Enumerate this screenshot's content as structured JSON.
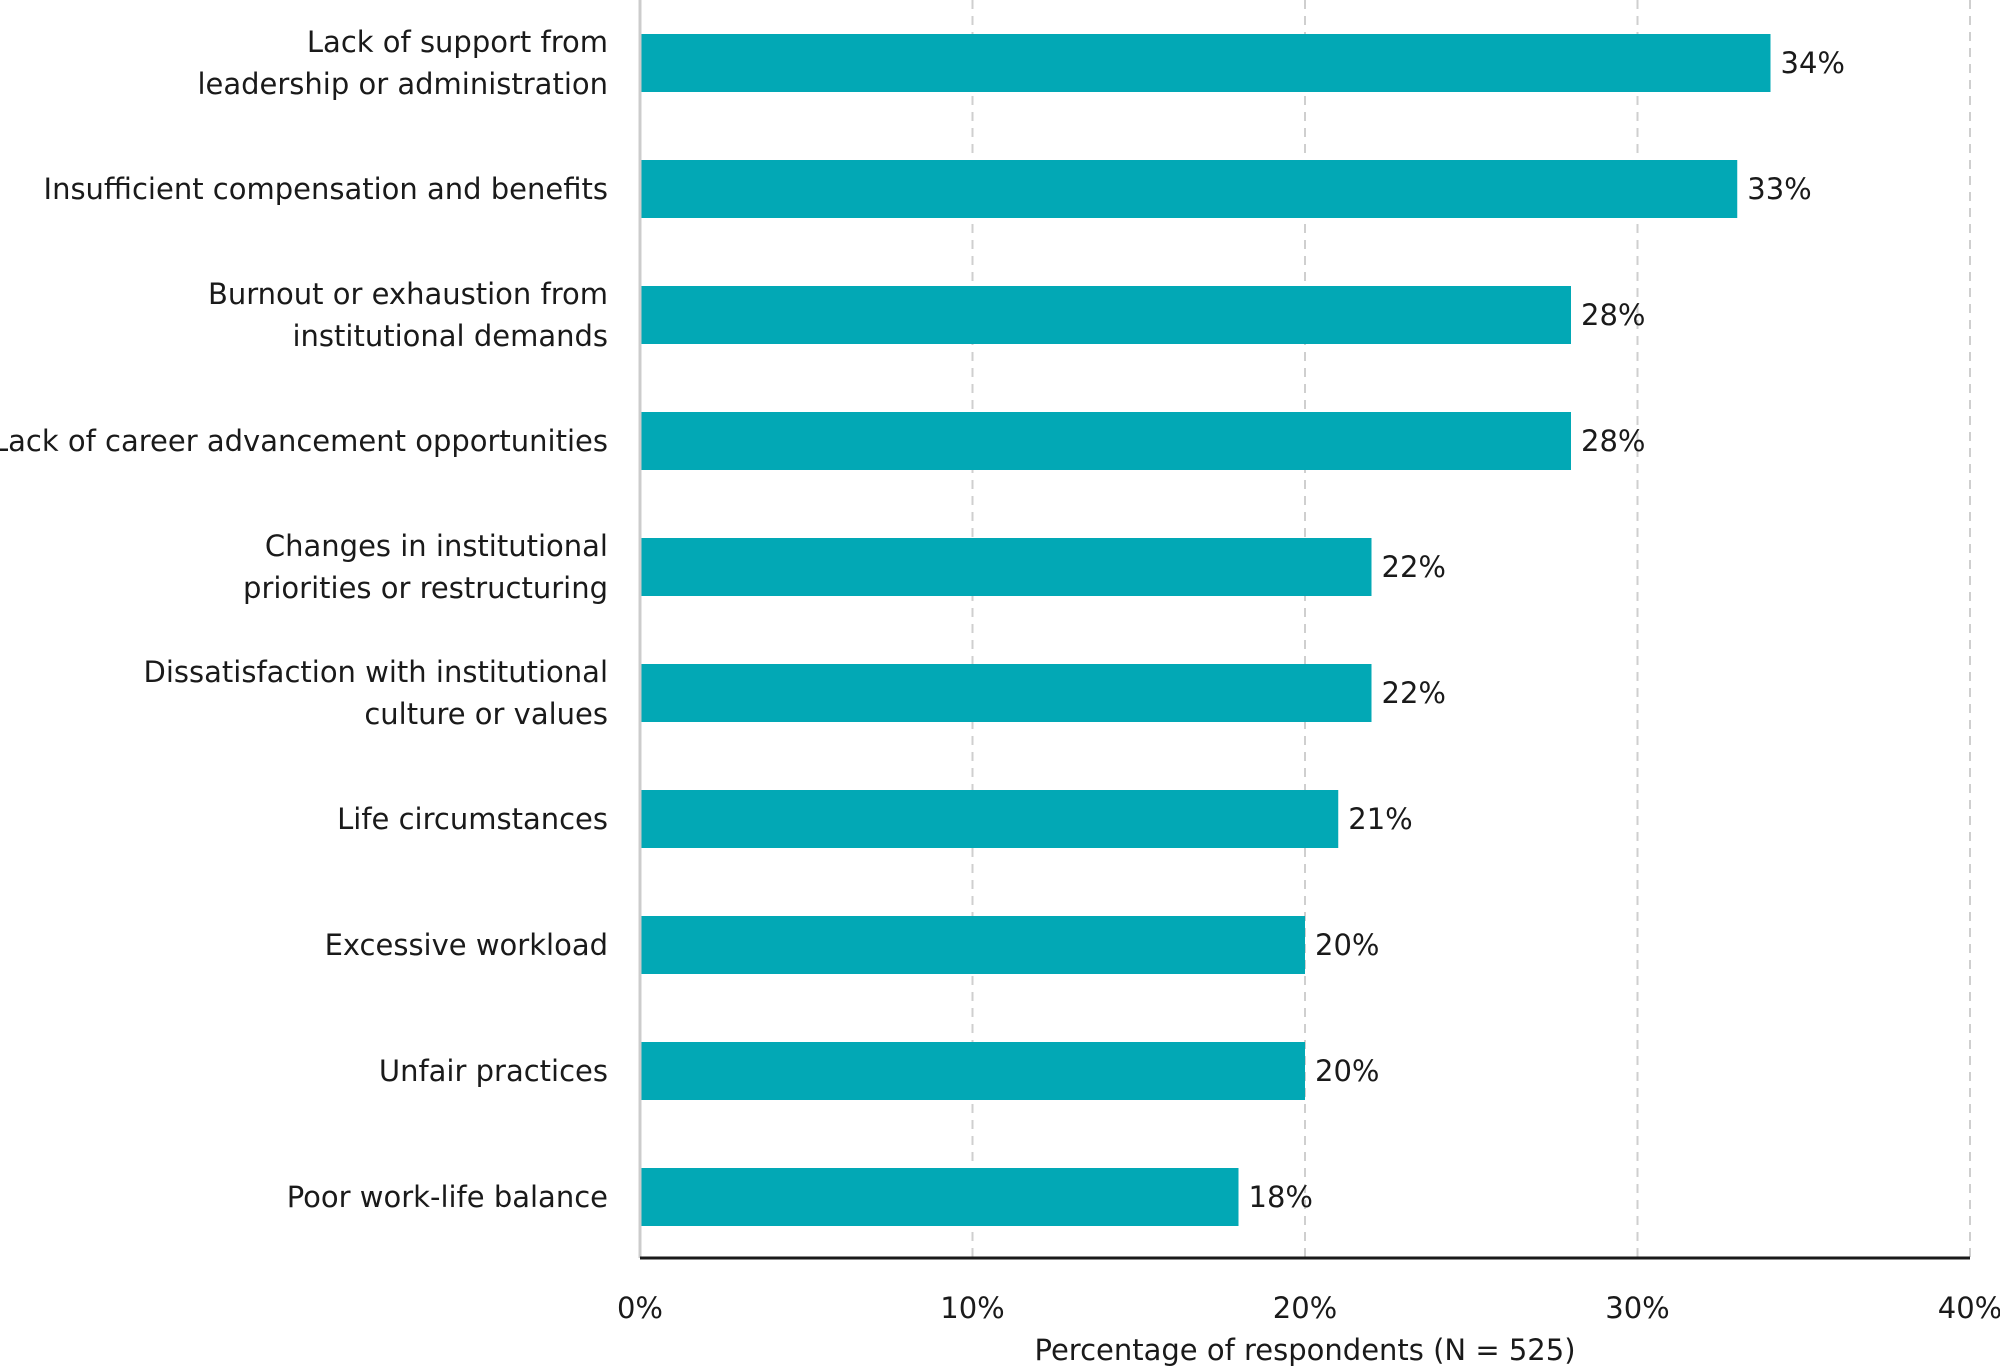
{
  "colors": {
    "bar": "#02a8b5",
    "grid": "#cfcfcf",
    "axis": "#1a1a1a",
    "text": "#1a1a1a"
  },
  "chart_data": {
    "type": "bar",
    "orientation": "horizontal",
    "categories": [
      "Lack of support from leadership or administration",
      "Insufficient compensation and benefits",
      "Burnout or exhaustion from institutional demands",
      "Lack of career advancement opportunities",
      "Changes in institutional priorities or restructuring",
      "Dissatisfaction with institutional culture or values",
      "Life circumstances",
      "Excessive workload",
      "Unfair practices",
      "Poor work-life balance"
    ],
    "category_label_lines": [
      [
        "Lack of support from",
        "leadership or administration"
      ],
      [
        "Insufficient compensation and benefits"
      ],
      [
        "Burnout or exhaustion from",
        "institutional demands"
      ],
      [
        "Lack of career advancement opportunities"
      ],
      [
        "Changes in institutional",
        "priorities or restructuring"
      ],
      [
        "Dissatisfaction with institutional",
        "culture or values"
      ],
      [
        "Life circumstances"
      ],
      [
        "Excessive workload"
      ],
      [
        "Unfair practices"
      ],
      [
        "Poor work-life balance"
      ]
    ],
    "values": [
      34,
      33,
      28,
      28,
      22,
      22,
      21,
      20,
      20,
      18
    ],
    "value_labels": [
      "34%",
      "33%",
      "28%",
      "28%",
      "22%",
      "22%",
      "21%",
      "20%",
      "20%",
      "18%"
    ],
    "title": "",
    "xlabel": "Percentage of respondents (N = 525)",
    "ylabel": "",
    "xlim": [
      0,
      40
    ],
    "xticks": [
      0,
      10,
      20,
      30,
      40
    ],
    "xtick_labels": [
      "0%",
      "10%",
      "20%",
      "30%",
      "40%"
    ],
    "grid": "vertical dashed",
    "legend": "none"
  }
}
